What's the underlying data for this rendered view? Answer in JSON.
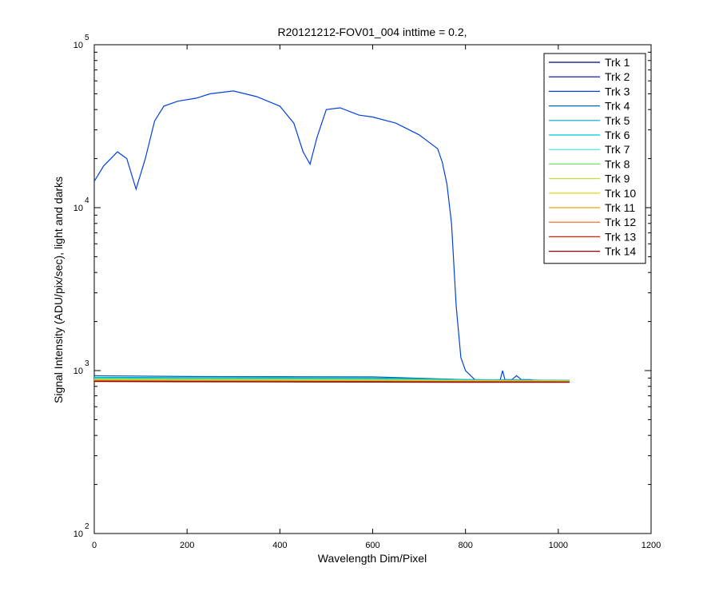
{
  "chart_data": {
    "type": "line",
    "title": "R20121212-FOV01_004 inttime = 0.2,",
    "xlabel": "Wavelength Dim/Pixel",
    "ylabel": "Signal Intensity (ADU/pix/sec), light and darks",
    "xlim": [
      0,
      1200
    ],
    "ylim": [
      100,
      100000
    ],
    "yscale": "log",
    "x_ticks": [
      0,
      200,
      400,
      600,
      800,
      1000,
      1200
    ],
    "x_tick_labels": [
      "0",
      "200",
      "400",
      "600",
      "800",
      "1000",
      "1200"
    ],
    "y_ticks": [
      {
        "value": 100,
        "base": "10",
        "exp": "2"
      },
      {
        "value": 1000,
        "base": "10",
        "exp": "3"
      },
      {
        "value": 10000,
        "base": "10",
        "exp": "4"
      },
      {
        "value": 100000,
        "base": "10",
        "exp": "5"
      }
    ],
    "grid": false,
    "legend_position": "top-right",
    "series": [
      {
        "name": "Trk 1",
        "color": "#00007f",
        "x": [
          0,
          200,
          400,
          600,
          800,
          1024
        ],
        "y": [
          890,
          875,
          872,
          870,
          868,
          865
        ]
      },
      {
        "name": "Trk 2",
        "color": "#0000b4",
        "x": [
          0,
          200,
          400,
          600,
          800,
          1024
        ],
        "y": [
          885,
          872,
          870,
          868,
          866,
          863
        ]
      },
      {
        "name": "Trk 3",
        "color": "#0040e0",
        "x": [
          0,
          20,
          50,
          70,
          90,
          110,
          130,
          150,
          180,
          220,
          250,
          300,
          350,
          400,
          430,
          450,
          465,
          480,
          500,
          530,
          570,
          600,
          650,
          700,
          740,
          750,
          760,
          770,
          780,
          790,
          800,
          820,
          850,
          875,
          880,
          885,
          900,
          910,
          920,
          940,
          950,
          1000,
          1024
        ],
        "y": [
          14500,
          18000,
          22000,
          20000,
          13000,
          20000,
          34000,
          42000,
          45000,
          47000,
          50000,
          52000,
          48000,
          42000,
          33000,
          22000,
          18500,
          27000,
          40000,
          41000,
          37000,
          36000,
          33000,
          28000,
          23000,
          19000,
          14000,
          8000,
          2500,
          1200,
          1000,
          880,
          875,
          880,
          1000,
          880,
          880,
          930,
          880,
          880,
          870,
          865,
          865
        ]
      },
      {
        "name": "Trk 4",
        "color": "#006ab0",
        "x": [
          0,
          200,
          400,
          600,
          800,
          1024
        ],
        "y": [
          930,
          920,
          918,
          915,
          880,
          870
        ]
      },
      {
        "name": "Trk 5",
        "color": "#00a0c8",
        "x": [
          0,
          200,
          400,
          600,
          800,
          1024
        ],
        "y": [
          910,
          905,
          903,
          900,
          880,
          870
        ]
      },
      {
        "name": "Trk 6",
        "color": "#00c8d0",
        "x": [
          0,
          200,
          400,
          600,
          800,
          1024
        ],
        "y": [
          900,
          895,
          893,
          890,
          875,
          868
        ]
      },
      {
        "name": "Trk 7",
        "color": "#40e0d0",
        "x": [
          0,
          200,
          400,
          600,
          800,
          1024
        ],
        "y": [
          895,
          890,
          888,
          885,
          872,
          866
        ]
      },
      {
        "name": "Trk 8",
        "color": "#70e070",
        "x": [
          0,
          200,
          400,
          600,
          800,
          1024
        ],
        "y": [
          890,
          885,
          883,
          880,
          870,
          865
        ]
      },
      {
        "name": "Trk 9",
        "color": "#c0e040",
        "x": [
          0,
          200,
          400,
          600,
          800,
          1024
        ],
        "y": [
          880,
          876,
          874,
          872,
          866,
          862
        ]
      },
      {
        "name": "Trk 10",
        "color": "#e0d000",
        "x": [
          0,
          200,
          400,
          600,
          800,
          1024
        ],
        "y": [
          875,
          871,
          869,
          867,
          862,
          859
        ]
      },
      {
        "name": "Trk 11",
        "color": "#f0a000",
        "x": [
          0,
          200,
          400,
          600,
          800,
          1024
        ],
        "y": [
          870,
          866,
          864,
          862,
          858,
          856
        ]
      },
      {
        "name": "Trk 12",
        "color": "#f06020",
        "x": [
          0,
          200,
          400,
          600,
          800,
          1024
        ],
        "y": [
          866,
          862,
          860,
          858,
          855,
          853
        ]
      },
      {
        "name": "Trk 13",
        "color": "#e02000",
        "x": [
          0,
          200,
          400,
          600,
          800,
          1024
        ],
        "y": [
          862,
          858,
          856,
          854,
          852,
          850
        ]
      },
      {
        "name": "Trk 14",
        "color": "#900000",
        "x": [
          0,
          200,
          400,
          600,
          800,
          1024
        ],
        "y": [
          858,
          854,
          852,
          850,
          848,
          847
        ]
      }
    ]
  }
}
